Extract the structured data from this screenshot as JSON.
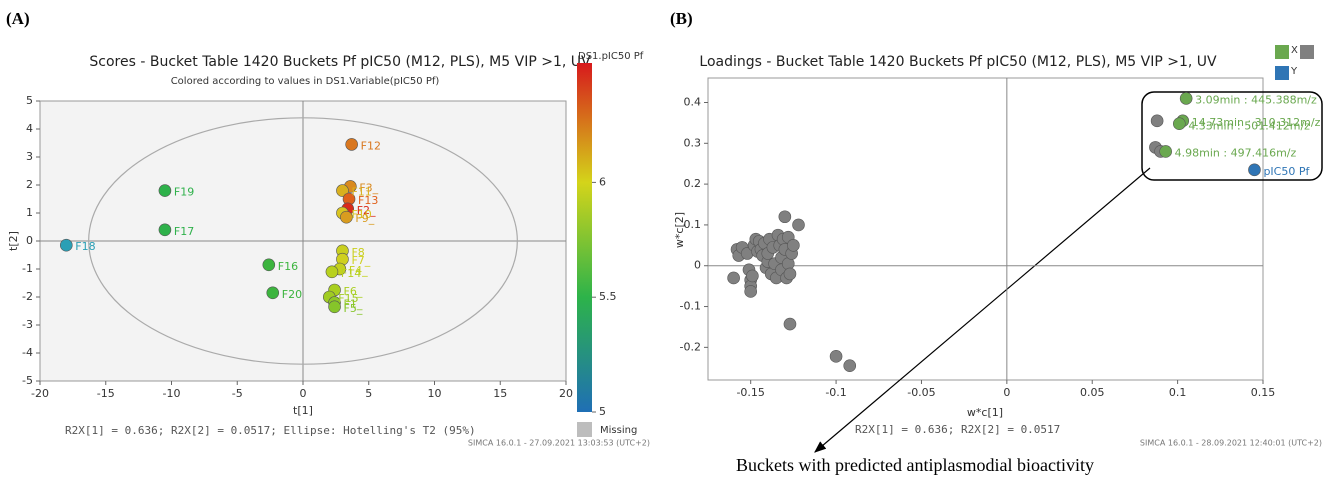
{
  "chart_data": [
    {
      "type": "scatter",
      "panel": "(A)",
      "title": "Scores - Bucket Table 1420 Buckets Pf pIC50 (M12, PLS), M5 VIP >1, UV",
      "subtitle": "Colored according to values in DS1.Variable(pIC50 Pf)",
      "xlabel": "t[1]",
      "ylabel": "t[2]",
      "footer": "R2X[1] = 0.636; R2X[2] = 0.0517; Ellipse: Hotelling's T2 (95%)",
      "stamp": "SIMCA 16.0.1 - 27.09.2021 13:03:53 (UTC+2)",
      "xlim": [
        -20,
        20
      ],
      "ylim": [
        -5,
        5
      ],
      "xticks": [
        -20,
        -15,
        -10,
        -5,
        0,
        5,
        10,
        15,
        20
      ],
      "yticks": [
        -5,
        -4,
        -3,
        -2,
        -1,
        0,
        1,
        2,
        3,
        4,
        5
      ],
      "ellipse_radii": [
        16.3,
        4.4
      ],
      "series": [
        {
          "x": [
            3.7,
            3.6,
            3.0,
            3.5,
            3.4,
            3.0,
            3.3,
            3.0,
            3.0,
            2.8,
            2.2,
            2.4,
            2.0,
            2.4,
            2.4,
            -2.6,
            -2.3,
            -10.5,
            -10.5,
            -18.0
          ],
          "y": [
            3.45,
            1.95,
            1.8,
            1.5,
            1.15,
            1.0,
            0.85,
            -0.35,
            -0.65,
            -1.0,
            -1.1,
            -1.75,
            -2.0,
            -2.2,
            -2.35,
            -0.85,
            -1.85,
            1.8,
            0.4,
            -0.15
          ],
          "point_labels": [
            "F12",
            "F3_",
            "F11",
            "F13",
            "F2_",
            "F10",
            "F9_",
            "F8",
            "F7_",
            "F4_",
            "F14",
            "F6_",
            "F15",
            "F1_",
            "F5_",
            "F16",
            "F20",
            "F19",
            "F17",
            "F18"
          ],
          "colors": [
            "#d9771f",
            "#d98a1f",
            "#d9b01f",
            "#e0601a",
            "#d92a1a",
            "#d9c41f",
            "#d99c1f",
            "#c9cf1f",
            "#cfd01f",
            "#c4d11f",
            "#b8d11f",
            "#a9cf1f",
            "#a0cc22",
            "#8fc827",
            "#86c52a",
            "#3cb43e",
            "#3cb43e",
            "#2eb14a",
            "#2eb14a",
            "#2a9fb5"
          ]
        }
      ],
      "colorbar": {
        "title": "DS1.pIC50 Pf",
        "lim": [
          5,
          6.52
        ],
        "ticks": [
          5,
          5.5,
          6
        ],
        "stops": [
          5,
          5.5,
          6,
          6.52
        ],
        "colors": [
          "#1f6fb5",
          "#2db34a",
          "#d4d41a",
          "#d7191c"
        ],
        "missing": "Missing",
        "missing_color": "#bdbdbd"
      }
    },
    {
      "type": "scatter",
      "panel": "(B)",
      "title": "Loadings - Bucket Table 1420 Buckets Pf pIC50 (M12, PLS), M5 VIP >1, UV",
      "xlabel": "w*c[1]",
      "ylabel": "w*c[2]",
      "footer": "R2X[1] = 0.636; R2X[2] = 0.0517",
      "stamp": "SIMCA 16.0.1 - 28.09.2021 12:40:01 (UTC+2)",
      "annotation": "Buckets with predicted antiplasmodial bioactivity",
      "xlim": [
        -0.175,
        0.15
      ],
      "ylim": [
        -0.28,
        0.46
      ],
      "xticks": [
        -0.15,
        -0.1,
        -0.05,
        0,
        0.05,
        0.1,
        0.15
      ],
      "yticks": [
        -0.2,
        -0.1,
        0,
        0.1,
        0.2,
        0.3,
        0.4
      ],
      "series": [
        {
          "name": "X",
          "x": [
            -0.16,
            -0.158,
            -0.157,
            -0.155,
            -0.152,
            -0.151,
            -0.15,
            -0.15,
            -0.15,
            -0.149,
            -0.148,
            -0.147,
            -0.146,
            -0.145,
            -0.144,
            -0.143,
            -0.142,
            -0.141,
            -0.14,
            -0.14,
            -0.139,
            -0.138,
            -0.137,
            -0.136,
            -0.135,
            -0.134,
            -0.133,
            -0.132,
            -0.132,
            -0.131,
            -0.13,
            -0.13,
            -0.129,
            -0.128,
            -0.128,
            -0.127,
            -0.126,
            -0.125,
            -0.122,
            -0.127,
            -0.1,
            -0.092,
            0.088,
            0.087,
            0.09,
            0.105,
            0.103,
            0.101,
            0.093
          ],
          "y": [
            -0.03,
            0.04,
            0.025,
            0.045,
            0.03,
            -0.01,
            -0.035,
            -0.05,
            -0.063,
            -0.025,
            0.05,
            0.065,
            0.035,
            0.06,
            0.04,
            0.025,
            0.055,
            -0.005,
            0.01,
            0.03,
            0.065,
            -0.02,
            0.045,
            0.005,
            -0.03,
            0.075,
            0.05,
            0.02,
            -0.01,
            0.065,
            0.12,
            0.04,
            -0.03,
            0.07,
            0.005,
            -0.02,
            0.03,
            0.05,
            0.1,
            -0.143,
            -0.222,
            -0.245,
            0.355,
            0.29,
            0.28,
            0.41,
            0.355,
            0.348,
            0.28
          ],
          "point_labels": [
            null,
            null,
            null,
            null,
            null,
            null,
            null,
            null,
            null,
            null,
            null,
            null,
            null,
            null,
            null,
            null,
            null,
            null,
            null,
            null,
            null,
            null,
            null,
            null,
            null,
            null,
            null,
            null,
            null,
            null,
            null,
            null,
            null,
            null,
            null,
            null,
            null,
            null,
            null,
            null,
            null,
            null,
            null,
            null,
            null,
            "3.09min : 445.388m/z",
            "14.73min : 310.312m/z",
            "4.33min : 501.412m/z",
            "4.98min : 497.416m/z"
          ],
          "colors": [
            "#808080",
            "#808080",
            "#808080",
            "#808080",
            "#808080",
            "#808080",
            "#808080",
            "#808080",
            "#808080",
            "#808080",
            "#808080",
            "#808080",
            "#808080",
            "#808080",
            "#808080",
            "#808080",
            "#808080",
            "#808080",
            "#808080",
            "#808080",
            "#808080",
            "#808080",
            "#808080",
            "#808080",
            "#808080",
            "#808080",
            "#808080",
            "#808080",
            "#808080",
            "#808080",
            "#808080",
            "#808080",
            "#808080",
            "#808080",
            "#808080",
            "#808080",
            "#808080",
            "#808080",
            "#808080",
            "#808080",
            "#808080",
            "#808080",
            "#808080",
            "#808080",
            "#808080",
            "#6aa84f",
            "#6aa84f",
            "#6aa84f",
            "#6aa84f"
          ],
          "label_color": "#6aa84f"
        },
        {
          "name": "Y",
          "x": [
            0.145
          ],
          "y": [
            0.235
          ],
          "point_labels": [
            "pIC50 Pf"
          ],
          "colors": [
            "#2f75b5"
          ],
          "label_color": "#2f75b5"
        }
      ]
    }
  ]
}
